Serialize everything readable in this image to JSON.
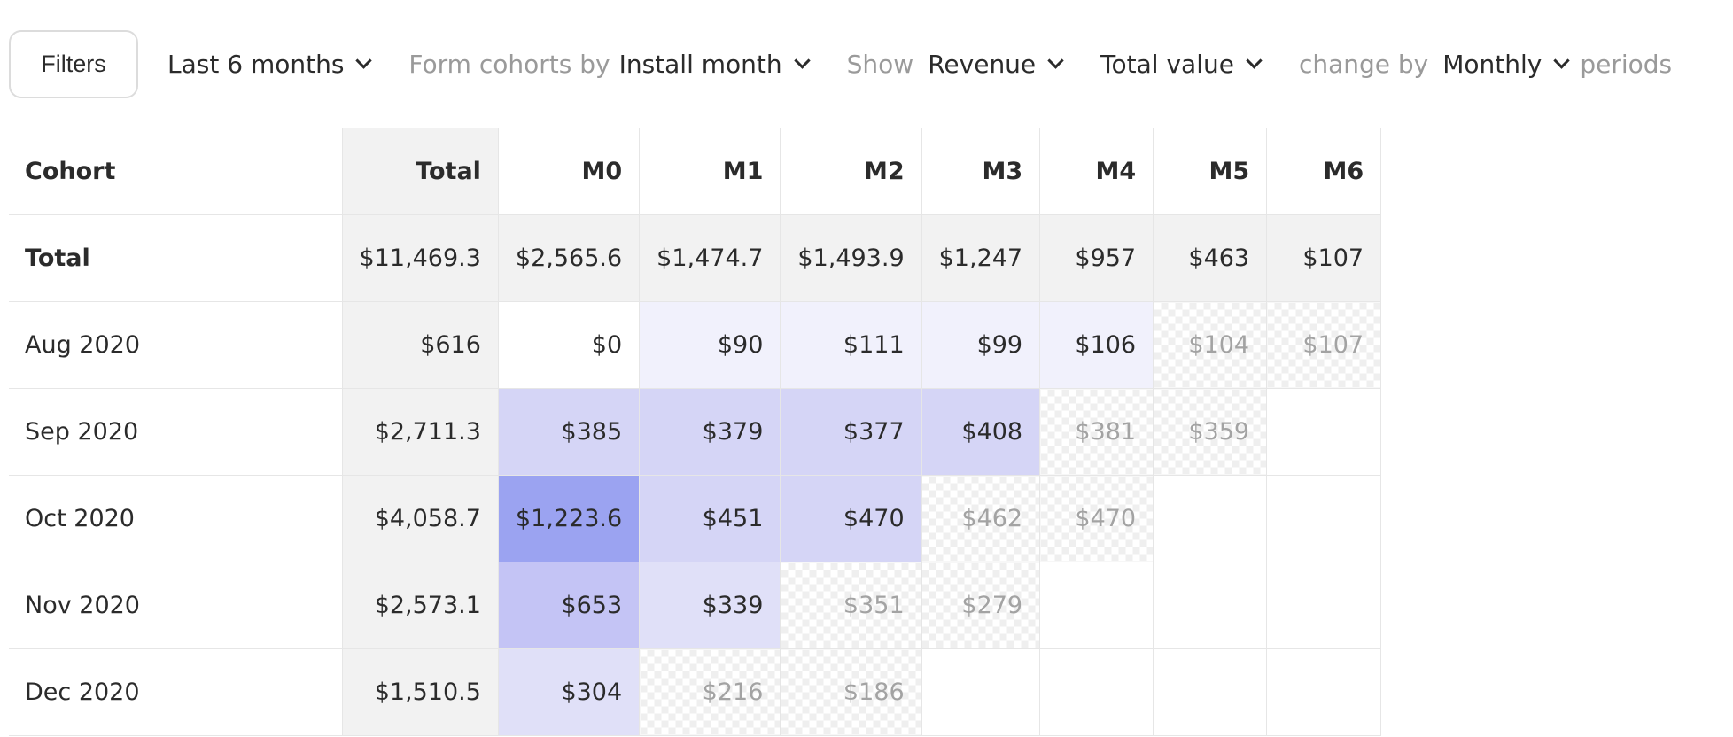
{
  "toolbar": {
    "filters_label": "Filters",
    "period": "Last 6 months",
    "cohorts_prefix": "Form cohorts by",
    "cohorts_value": "Install month",
    "show_prefix": "Show",
    "show_value": "Revenue",
    "aggregation_value": "Total value",
    "change_prefix": "change by",
    "change_value": "Monthly",
    "change_suffix": "periods"
  },
  "table": {
    "headers": [
      "Cohort",
      "Total",
      "M0",
      "M1",
      "M2",
      "M3",
      "M4",
      "M5",
      "M6"
    ],
    "total_row": {
      "label": "Total",
      "total": "$11,469.3",
      "cells": [
        "$2,565.6",
        "$1,474.7",
        "$1,493.9",
        "$1,247",
        "$957",
        "$463",
        "$107"
      ]
    },
    "rows": [
      {
        "label": "Aug 2020",
        "total": "$616",
        "cells": [
          "$0",
          "$90",
          "$111",
          "$99",
          "$106",
          "$104",
          "$107"
        ]
      },
      {
        "label": "Sep 2020",
        "total": "$2,711.3",
        "cells": [
          "$385",
          "$379",
          "$377",
          "$408",
          "$381",
          "$359"
        ]
      },
      {
        "label": "Oct 2020",
        "total": "$4,058.7",
        "cells": [
          "$1,223.6",
          "$451",
          "$470",
          "$462",
          "$470"
        ]
      },
      {
        "label": "Nov 2020",
        "total": "$2,573.1",
        "cells": [
          "$653",
          "$339",
          "$351",
          "$279"
        ]
      },
      {
        "label": "Dec 2020",
        "total": "$1,510.5",
        "cells": [
          "$304",
          "$216",
          "$186"
        ]
      }
    ]
  },
  "colors": {
    "heat_lightest": "#f1f1fc",
    "heat_light": "#d5d5f6",
    "heat_mid": "#c4c4f5",
    "heat_strong": "#9ba3f1",
    "projected_text": "#a3a3a3"
  }
}
